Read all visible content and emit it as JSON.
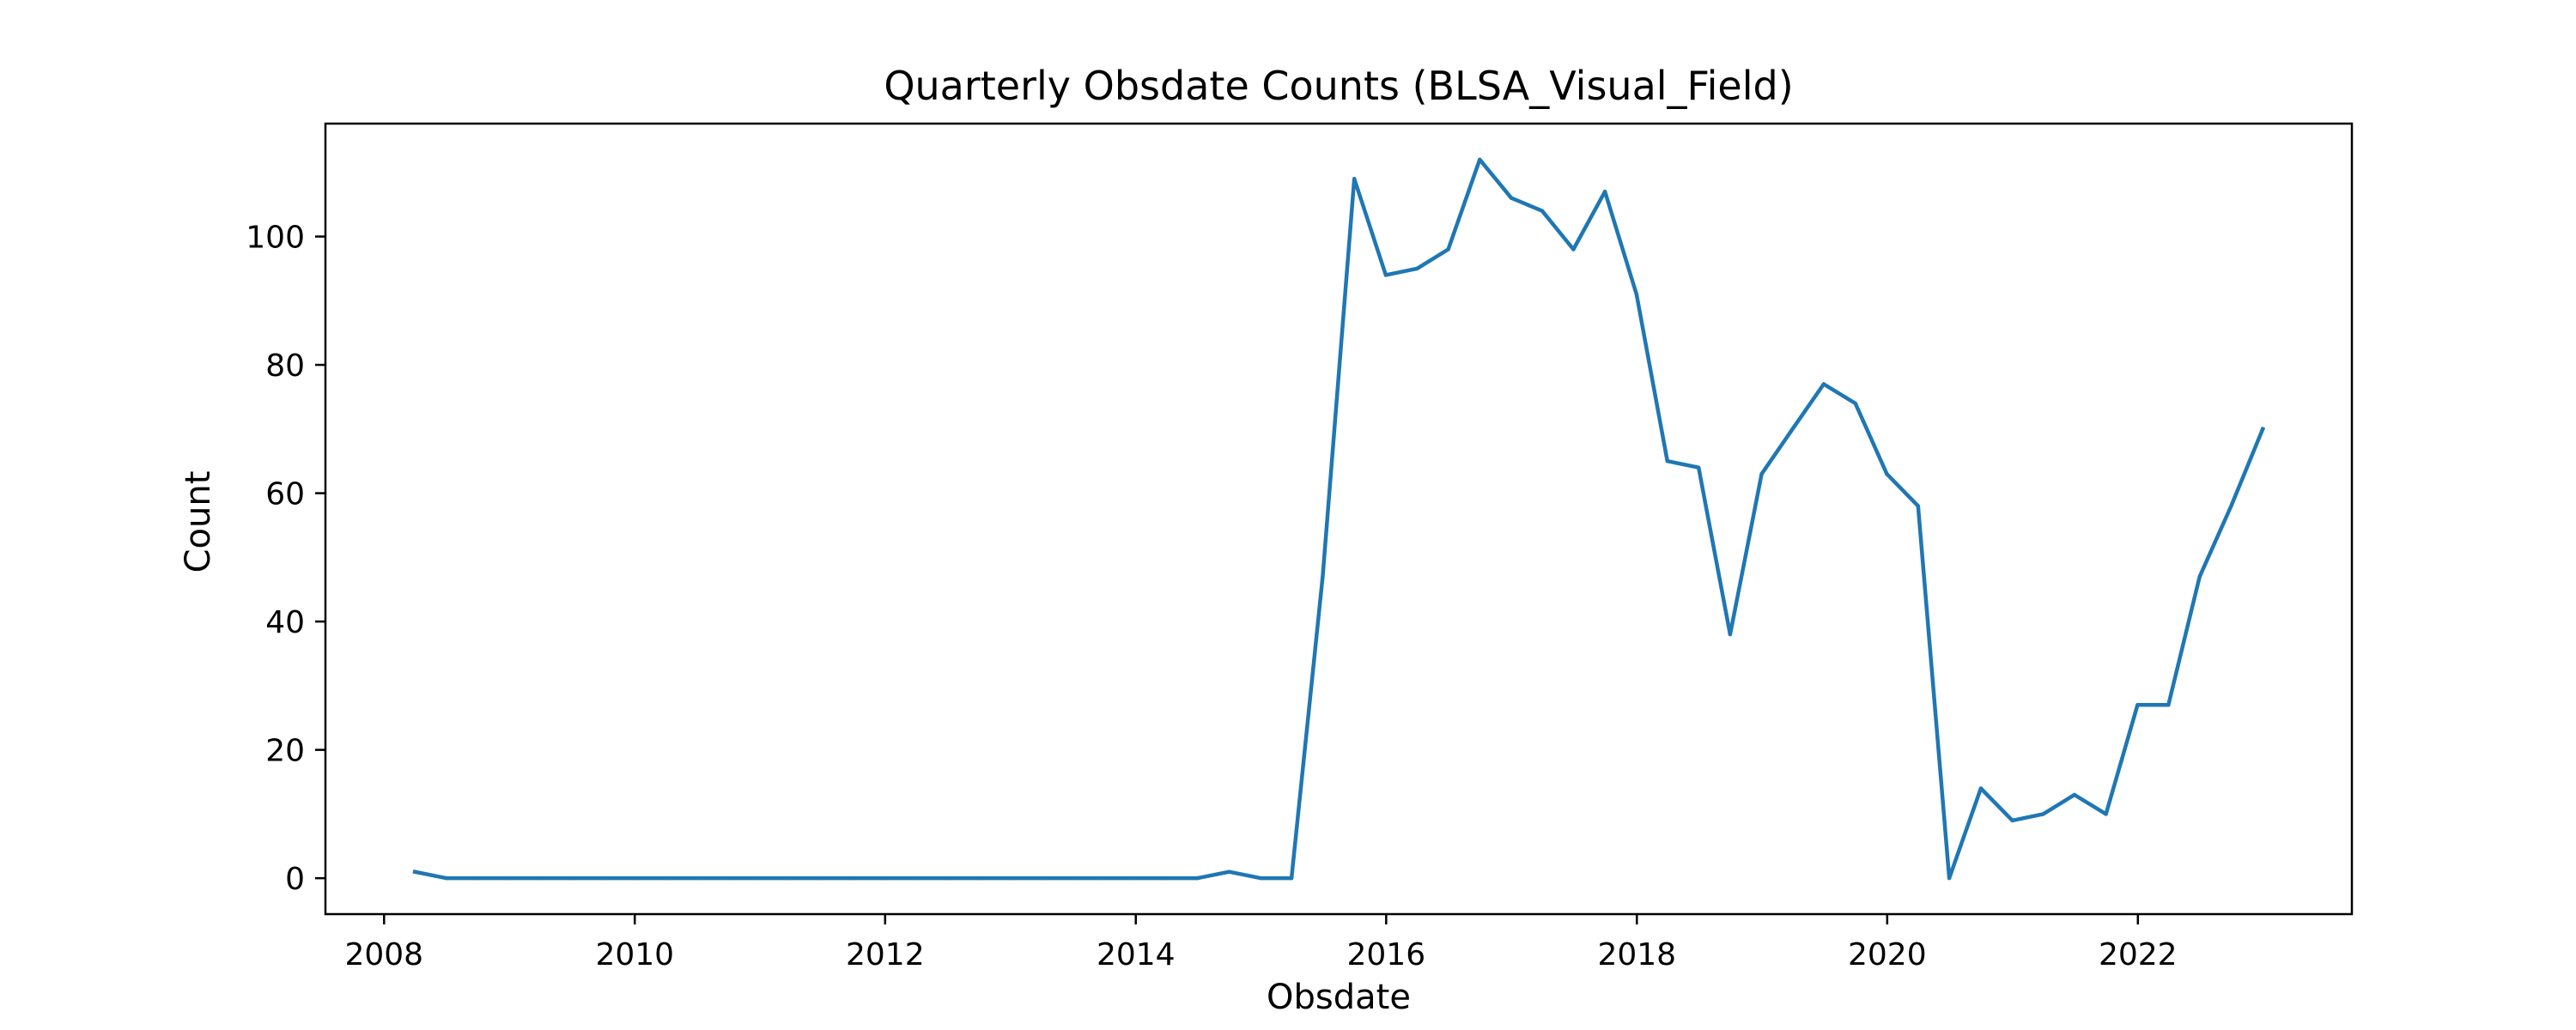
{
  "chart_data": {
    "type": "line",
    "title": "Quarterly Obsdate Counts (BLSA_Visual_Field)",
    "xlabel": "Obsdate",
    "ylabel": "Count",
    "xlim": [
      "2007-07-14",
      "2023-09-17"
    ],
    "ylim": [
      -5.6,
      117.6
    ],
    "x_ticks": [
      "2008",
      "2010",
      "2012",
      "2014",
      "2016",
      "2018",
      "2020",
      "2022"
    ],
    "y_ticks": [
      "0",
      "20",
      "40",
      "60",
      "80",
      "100"
    ],
    "grid": false,
    "legend": "none",
    "colors": {
      "line": "#1f77b4",
      "axes": "#000000",
      "background": "#ffffff"
    },
    "series": [
      {
        "x": [
          "2008-03-31",
          "2008-06-30",
          "2008-09-30",
          "2008-12-31",
          "2009-03-31",
          "2009-06-30",
          "2009-09-30",
          "2009-12-31",
          "2010-03-31",
          "2010-06-30",
          "2010-09-30",
          "2010-12-31",
          "2011-03-31",
          "2011-06-30",
          "2011-09-30",
          "2011-12-31",
          "2012-03-31",
          "2012-06-30",
          "2012-09-30",
          "2012-12-31",
          "2013-03-31",
          "2013-06-30",
          "2013-09-30",
          "2013-12-31",
          "2014-03-31",
          "2014-06-30",
          "2014-09-30",
          "2014-12-31",
          "2015-03-31",
          "2015-06-30",
          "2015-09-30",
          "2015-12-31",
          "2016-03-31",
          "2016-06-30",
          "2016-09-30",
          "2016-12-31",
          "2017-03-31",
          "2017-06-30",
          "2017-09-30",
          "2017-12-31",
          "2018-03-31",
          "2018-06-30",
          "2018-09-30",
          "2018-12-31",
          "2019-03-31",
          "2019-06-30",
          "2019-09-30",
          "2019-12-31",
          "2020-03-31",
          "2020-06-30",
          "2020-09-30",
          "2020-12-31",
          "2021-03-31",
          "2021-06-30",
          "2021-09-30",
          "2021-12-31",
          "2022-03-31",
          "2022-06-30",
          "2022-09-30",
          "2022-12-31"
        ],
        "values": [
          1,
          0,
          0,
          0,
          0,
          0,
          0,
          0,
          0,
          0,
          0,
          0,
          0,
          0,
          0,
          0,
          0,
          0,
          0,
          0,
          0,
          0,
          0,
          0,
          0,
          0,
          1,
          0,
          0,
          47,
          109,
          94,
          95,
          98,
          112,
          106,
          104,
          98,
          107,
          91,
          65,
          64,
          38,
          63,
          70,
          77,
          74,
          63,
          58,
          0,
          14,
          9,
          10,
          13,
          10,
          27,
          27,
          47,
          58,
          70
        ]
      }
    ]
  }
}
